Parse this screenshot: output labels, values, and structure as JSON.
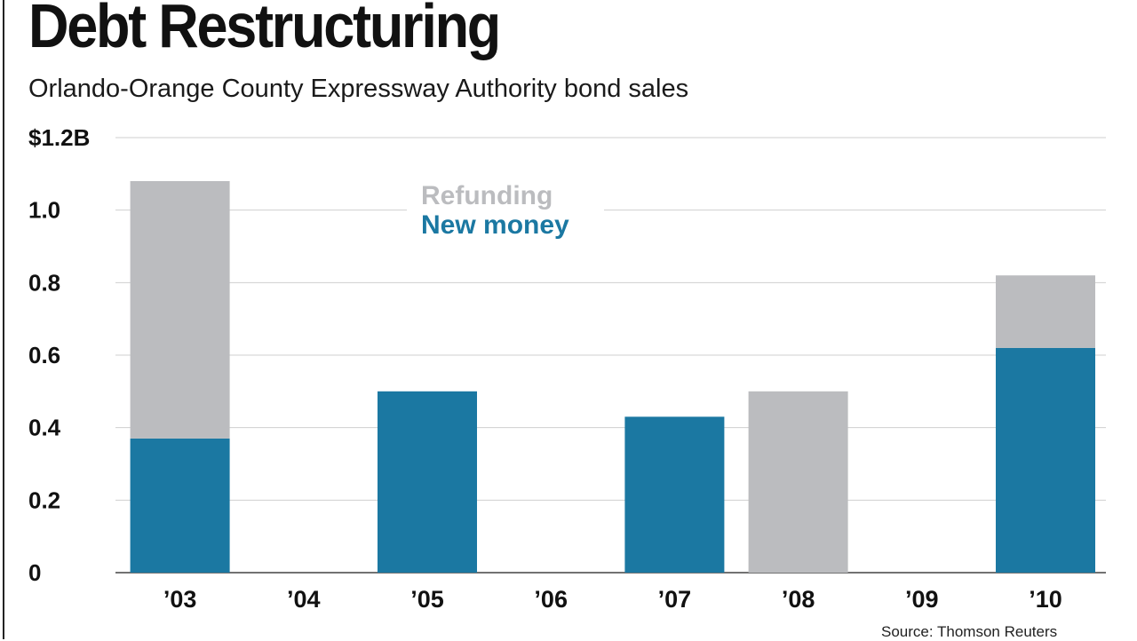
{
  "title": "Debt Restructuring",
  "subtitle": "Orlando-Orange County Expressway Authority bond sales",
  "source": "Source: Thomson Reuters",
  "colors": {
    "refunding": "#BBBCBF",
    "new_money": "#1B78A2",
    "gridline": "#CFCFCF",
    "text": "#111111"
  },
  "chart_data": {
    "type": "bar",
    "stacked": true,
    "categories": [
      "’03",
      "’04",
      "’05",
      "’06",
      "’07",
      "’08",
      "’09",
      "’10"
    ],
    "series": [
      {
        "name": "New money",
        "values": [
          0.37,
          0,
          0.5,
          0,
          0.43,
          0,
          0,
          0.62
        ]
      },
      {
        "name": "Refunding",
        "values": [
          0.71,
          0,
          0,
          0,
          0,
          0.5,
          0,
          0.2
        ]
      }
    ],
    "yticks": [
      {
        "value": 0,
        "label": "0"
      },
      {
        "value": 0.2,
        "label": "0.2"
      },
      {
        "value": 0.4,
        "label": "0.4"
      },
      {
        "value": 0.6,
        "label": "0.6"
      },
      {
        "value": 0.8,
        "label": "0.8"
      },
      {
        "value": 1.0,
        "label": "1.0"
      },
      {
        "value": 1.2,
        "label": "$1.2B"
      }
    ],
    "ylim": [
      0,
      1.2
    ],
    "grid": true,
    "legend": {
      "placement": "top-center",
      "items": [
        {
          "label": "Refunding",
          "series": "Refunding"
        },
        {
          "label": "New money",
          "series": "New money"
        }
      ]
    },
    "xlabel": "",
    "ylabel": ""
  }
}
